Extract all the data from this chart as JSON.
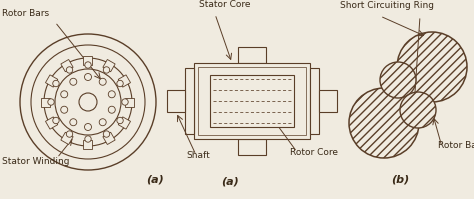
{
  "bg_color": "#f0ebe0",
  "line_color": "#5a3e28",
  "text_color": "#3a2a18",
  "fig_width": 4.74,
  "fig_height": 1.99,
  "dpi": 100,
  "labels": {
    "rotor_bars_left": "Rotor Bars",
    "stator_winding": "Stator Winding",
    "stator_core": "Stator Core",
    "shaft": "Shaft",
    "rotor_core": "Rotor Core",
    "short_circuiting_ring": "Short Circuiting Ring",
    "rotor_bars_right": "Rotor Bars",
    "a_label": "(a)",
    "b_label": "(b)"
  }
}
